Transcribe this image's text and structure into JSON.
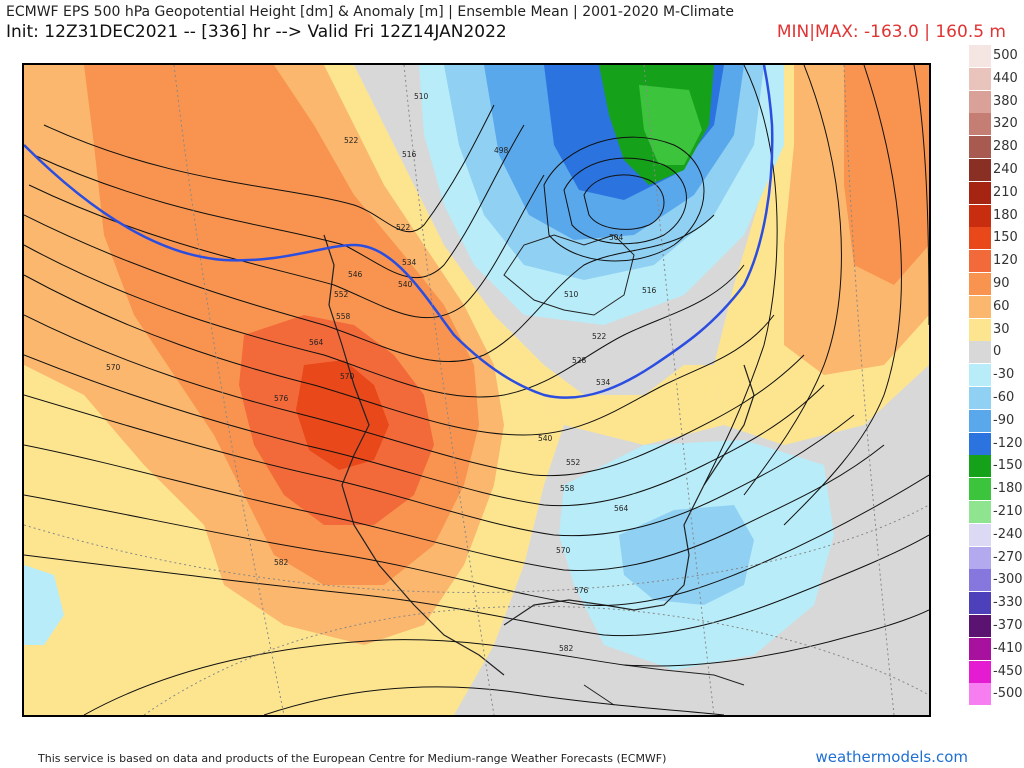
{
  "header": {
    "title": "ECMWF EPS 500 hPa Geopotential Height [dm] & Anomaly [m] | Ensemble Mean | 2001-2020 M-Climate",
    "init": "Init: 12Z31DEC2021 -- [336] hr --> Valid Fri 12Z14JAN2022",
    "minmax": "MIN|MAX: -163.0 | 160.5 m"
  },
  "legend": [
    {
      "label": "500",
      "color": "#f6e6e3"
    },
    {
      "label": "440",
      "color": "#e9c4bd"
    },
    {
      "label": "380",
      "color": "#d9a198"
    },
    {
      "label": "320",
      "color": "#c47e74"
    },
    {
      "label": "280",
      "color": "#a85a50"
    },
    {
      "label": "240",
      "color": "#8a2f24"
    },
    {
      "label": "210",
      "color": "#a52412"
    },
    {
      "label": "180",
      "color": "#c92d0f"
    },
    {
      "label": "150",
      "color": "#e8481a"
    },
    {
      "label": "120",
      "color": "#f36a3a"
    },
    {
      "label": "90",
      "color": "#f8944f"
    },
    {
      "label": "60",
      "color": "#fbb76d"
    },
    {
      "label": "30",
      "color": "#fde58f"
    },
    {
      "label": "0",
      "color": "#d8d8d8"
    },
    {
      "label": "-30",
      "color": "#b8ecf8"
    },
    {
      "label": "-60",
      "color": "#8fd0f3"
    },
    {
      "label": "-90",
      "color": "#5aa8ec"
    },
    {
      "label": "-120",
      "color": "#2b74e0"
    },
    {
      "label": "-150",
      "color": "#15a11a"
    },
    {
      "label": "-180",
      "color": "#3cc43c"
    },
    {
      "label": "-210",
      "color": "#8fe58f"
    },
    {
      "label": "-240",
      "color": "#dcd9f5"
    },
    {
      "label": "-270",
      "color": "#b3a9ee"
    },
    {
      "label": "-300",
      "color": "#8577dd"
    },
    {
      "label": "-330",
      "color": "#4e3fba"
    },
    {
      "label": "-370",
      "color": "#5a1370"
    },
    {
      "label": "-410",
      "color": "#a8109e"
    },
    {
      "label": "-450",
      "color": "#e51bd1"
    },
    {
      "label": "-500",
      "color": "#f77ef0"
    }
  ],
  "contour_labels": [
    "510",
    "516",
    "522",
    "528",
    "534",
    "540",
    "546",
    "552",
    "558",
    "564",
    "570",
    "576",
    "582",
    "498",
    "504"
  ],
  "footer": {
    "attribution": "This service is based on data and products of the European Centre for Medium-range Weather Forecasts (ECMWF)",
    "site": "weathermodels.com"
  }
}
